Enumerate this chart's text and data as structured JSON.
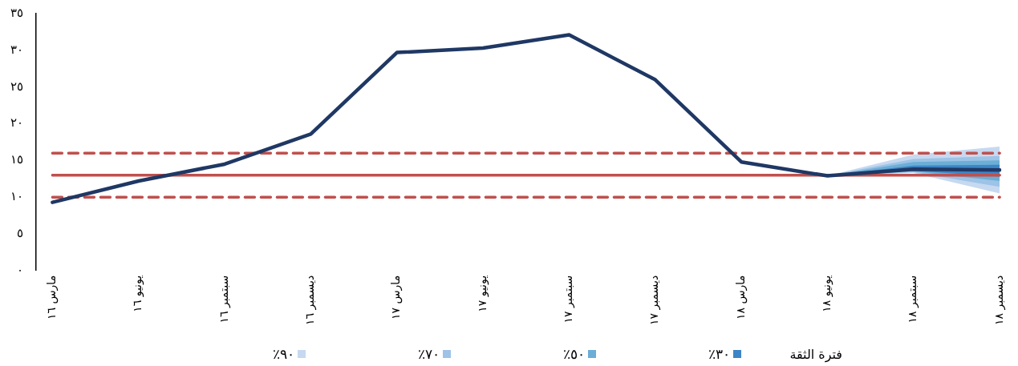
{
  "chart_data": {
    "type": "line",
    "categories": [
      "مارس ١٦",
      "يونيو ١٦",
      "سبتمبر ١٦",
      "ديسمبر ١٦",
      "مارس ١٧",
      "يونيو ١٧",
      "سبتمبر ١٧",
      "ديسمبر ١٧",
      "مارس ١٨",
      "يونيو ١٨",
      "سبتمبر ١٨",
      "ديسمبر ١٨"
    ],
    "series": [
      {
        "color": "#1f3864",
        "values": [
          9.3,
          12.2,
          14.5,
          18.6,
          29.7,
          30.3,
          32.1,
          26.0,
          14.8,
          12.9,
          13.8,
          13.7
        ]
      },
      {
        "type": "area",
        "name": "٩٠٪",
        "color": "#c6d9f0",
        "values": [
          null,
          null,
          null,
          null,
          null,
          null,
          null,
          null,
          null,
          null,
          null,
          null
        ],
        "lower": [
          null,
          null,
          null,
          null,
          null,
          null,
          null,
          null,
          null,
          12.9,
          13.3,
          10.5
        ],
        "upper": [
          null,
          null,
          null,
          null,
          null,
          null,
          null,
          null,
          null,
          12.9,
          15.8,
          16.9
        ]
      },
      {
        "type": "area",
        "name": "٧٠٪",
        "color": "#9dc3e6",
        "values": [
          null,
          null,
          null,
          null,
          null,
          null,
          null,
          null,
          null,
          null,
          null,
          null
        ],
        "lower": [
          null,
          null,
          null,
          null,
          null,
          null,
          null,
          null,
          null,
          12.9,
          13.4,
          11.4
        ],
        "upper": [
          null,
          null,
          null,
          null,
          null,
          null,
          null,
          null,
          null,
          12.9,
          15.2,
          15.6
        ]
      },
      {
        "type": "area",
        "name": "٥٠٪",
        "color": "#6baed6",
        "values": [
          null,
          null,
          null,
          null,
          null,
          null,
          null,
          null,
          null,
          null,
          null,
          null
        ],
        "lower": [
          null,
          null,
          null,
          null,
          null,
          null,
          null,
          null,
          null,
          12.9,
          13.5,
          12.2
        ],
        "upper": [
          null,
          null,
          null,
          null,
          null,
          null,
          null,
          null,
          null,
          12.9,
          14.8,
          15.0
        ]
      },
      {
        "type": "area",
        "name": "٣٠٪",
        "color": "#3d85c6",
        "values": [
          null,
          null,
          null,
          null,
          null,
          null,
          null,
          null,
          null,
          null,
          null,
          null
        ],
        "lower": [
          null,
          null,
          null,
          null,
          null,
          null,
          null,
          null,
          null,
          12.9,
          13.6,
          12.8
        ],
        "upper": [
          null,
          null,
          null,
          null,
          null,
          null,
          null,
          null,
          null,
          12.9,
          14.3,
          14.4
        ]
      }
    ],
    "ref_lines": [
      {
        "axis": "y",
        "value": 13,
        "color": "#c0504d",
        "line_style": "solid"
      },
      {
        "axis": "y",
        "value": 16,
        "color": "#c0504d",
        "line_style": "dashed"
      },
      {
        "axis": "y",
        "value": 10,
        "color": "#c0504d",
        "line_style": "dashed"
      }
    ],
    "legend_title": "فترة الثقة",
    "legend": "bottom",
    "grid": false,
    "marker": "none",
    "ylim": [
      0,
      35
    ],
    "yticks": [
      {
        "value": 0,
        "label": "٠"
      },
      {
        "value": 5,
        "label": "٥"
      },
      {
        "value": 10,
        "label": "١٠"
      },
      {
        "value": 15,
        "label": "١٥"
      },
      {
        "value": 20,
        "label": "٢٠"
      },
      {
        "value": 25,
        "label": "٢٥"
      },
      {
        "value": 30,
        "label": "٣٠"
      },
      {
        "value": 35,
        "label": "٣٥"
      }
    ]
  }
}
